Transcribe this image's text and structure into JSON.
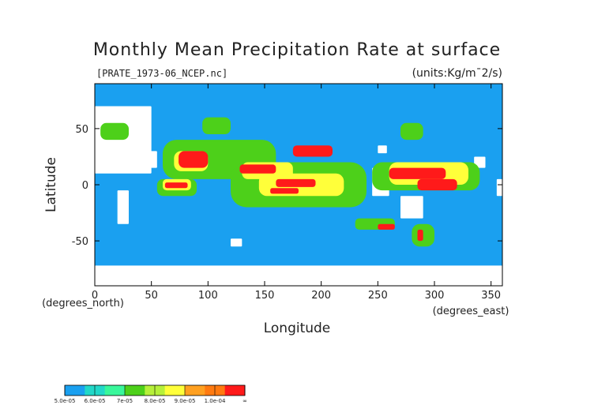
{
  "chart_data": {
    "type": "heatmap",
    "title": "Monthly Mean Precipitation Rate at surface",
    "source_label": "[PRATE_1973-06_NCEP.nc]",
    "units_label": "(units:Kg/m¯2/s)",
    "xlabel": "Longitude",
    "ylabel": "Latitude",
    "x_unit_label": "(degrees_east)",
    "y_unit_label": "(degrees_north)",
    "xlim": [
      0,
      360
    ],
    "ylim": [
      -90,
      90
    ],
    "x_ticks": [
      0,
      50,
      100,
      150,
      200,
      250,
      300,
      350
    ],
    "y_ticks": [
      -50,
      0,
      50
    ],
    "grid": false,
    "colorbar": {
      "levels": [
        "5.0e-05",
        "6.0e-05",
        "7e-05",
        "8.0e-05",
        "9.0e-05",
        "1.0e-04",
        "∞"
      ],
      "colors": [
        "#1aa0f0",
        "#22d8c8",
        "#39f79b",
        "#4dd01a",
        "#b6f03a",
        "#ffff3a",
        "#ffa020",
        "#ff7a10",
        "#ff1a1a"
      ]
    },
    "colors": {
      "ocean_background": "#1aa0f0",
      "missing": "#ffffff",
      "band1": "#22d8c8",
      "band2": "#4dd01a",
      "band3": "#ffff3a",
      "band4": "#ffa020",
      "band5": "#ff1a1a"
    },
    "regions": [
      {
        "level": 0,
        "lon": [
          0,
          50
        ],
        "lat": [
          10,
          70
        ]
      },
      {
        "level": 0,
        "lon": [
          20,
          30
        ],
        "lat": [
          -35,
          -5
        ]
      },
      {
        "level": 0,
        "lon": [
          0,
          15
        ],
        "lat": [
          28,
          35
        ]
      },
      {
        "level": 0,
        "lon": [
          40,
          55
        ],
        "lat": [
          15,
          30
        ]
      },
      {
        "level": 0,
        "lon": [
          0,
          360
        ],
        "lat": [
          -90,
          -72
        ]
      },
      {
        "level": 0,
        "lon": [
          245,
          260
        ],
        "lat": [
          -10,
          15
        ]
      },
      {
        "level": 0,
        "lon": [
          270,
          290
        ],
        "lat": [
          -30,
          -10
        ]
      },
      {
        "level": 0,
        "lon": [
          355,
          360
        ],
        "lat": [
          -10,
          5
        ]
      },
      {
        "level": 0,
        "lon": [
          335,
          345
        ],
        "lat": [
          15,
          25
        ]
      },
      {
        "level": 0,
        "lon": [
          250,
          258
        ],
        "lat": [
          28,
          35
        ]
      },
      {
        "level": 0,
        "lon": [
          120,
          130
        ],
        "lat": [
          -55,
          -48
        ]
      },
      {
        "level": 2,
        "lon": [
          55,
          90
        ],
        "lat": [
          -10,
          5
        ]
      },
      {
        "level": 2,
        "lon": [
          60,
          160
        ],
        "lat": [
          5,
          40
        ]
      },
      {
        "level": 2,
        "lon": [
          120,
          240
        ],
        "lat": [
          -20,
          20
        ]
      },
      {
        "level": 2,
        "lon": [
          245,
          340
        ],
        "lat": [
          -5,
          20
        ]
      },
      {
        "level": 2,
        "lon": [
          230,
          265
        ],
        "lat": [
          -40,
          -30
        ]
      },
      {
        "level": 2,
        "lon": [
          280,
          300
        ],
        "lat": [
          -55,
          -35
        ]
      },
      {
        "level": 2,
        "lon": [
          5,
          30
        ],
        "lat": [
          40,
          55
        ]
      },
      {
        "level": 2,
        "lon": [
          95,
          120
        ],
        "lat": [
          45,
          60
        ]
      },
      {
        "level": 2,
        "lon": [
          270,
          290
        ],
        "lat": [
          40,
          55
        ]
      },
      {
        "level": 3,
        "lon": [
          60,
          85
        ],
        "lat": [
          -5,
          5
        ]
      },
      {
        "level": 3,
        "lon": [
          70,
          100
        ],
        "lat": [
          12,
          30
        ]
      },
      {
        "level": 3,
        "lon": [
          130,
          175
        ],
        "lat": [
          5,
          20
        ]
      },
      {
        "level": 3,
        "lon": [
          145,
          220
        ],
        "lat": [
          -10,
          10
        ]
      },
      {
        "level": 3,
        "lon": [
          260,
          330
        ],
        "lat": [
          0,
          20
        ]
      },
      {
        "level": 5,
        "lon": [
          62,
          82
        ],
        "lat": [
          -3,
          2
        ]
      },
      {
        "level": 5,
        "lon": [
          74,
          100
        ],
        "lat": [
          15,
          30
        ]
      },
      {
        "level": 5,
        "lon": [
          128,
          160
        ],
        "lat": [
          10,
          18
        ]
      },
      {
        "level": 5,
        "lon": [
          160,
          195
        ],
        "lat": [
          -2,
          5
        ]
      },
      {
        "level": 5,
        "lon": [
          155,
          180
        ],
        "lat": [
          -8,
          -3
        ]
      },
      {
        "level": 5,
        "lon": [
          175,
          210
        ],
        "lat": [
          25,
          35
        ]
      },
      {
        "level": 5,
        "lon": [
          260,
          310
        ],
        "lat": [
          5,
          15
        ]
      },
      {
        "level": 5,
        "lon": [
          285,
          320
        ],
        "lat": [
          -5,
          5
        ]
      },
      {
        "level": 5,
        "lon": [
          250,
          265
        ],
        "lat": [
          -40,
          -35
        ]
      },
      {
        "level": 5,
        "lon": [
          285,
          290
        ],
        "lat": [
          -50,
          -40
        ]
      }
    ]
  }
}
